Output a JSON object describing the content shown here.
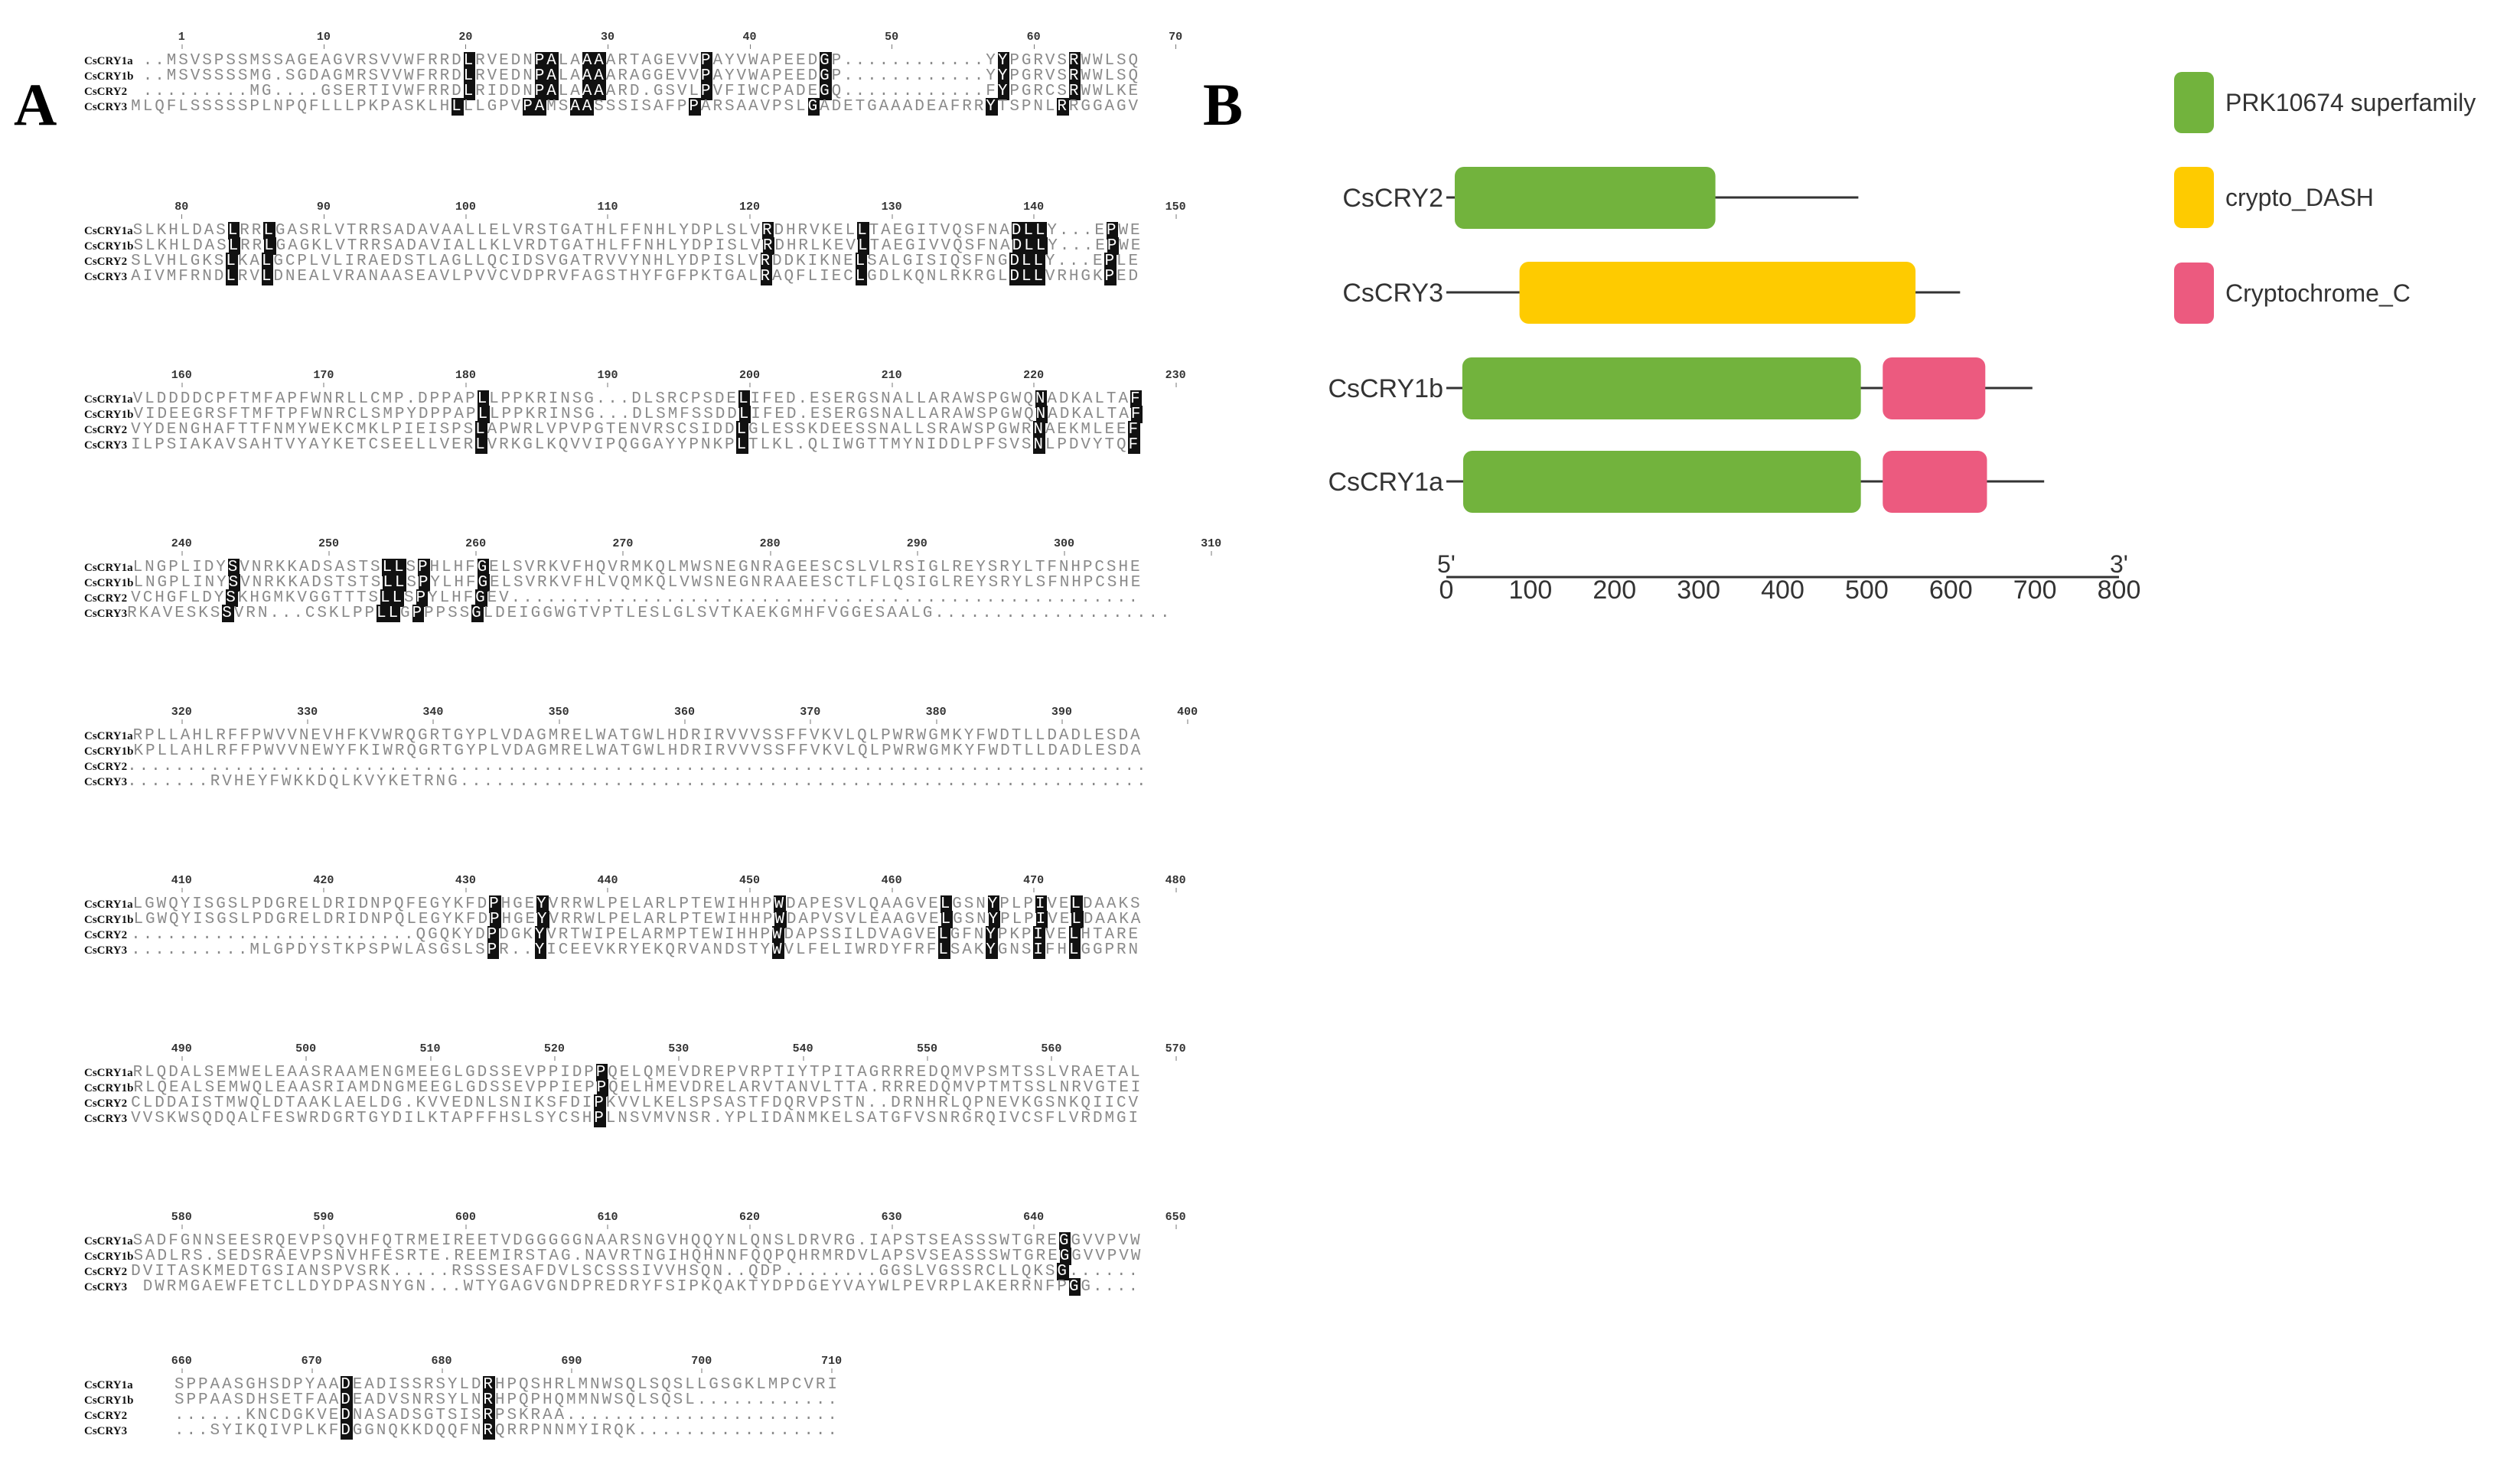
{
  "panel_a": {
    "label": "A",
    "blocks": [
      {
        "ruler": [
          "1",
          "10",
          "20",
          "30",
          "40",
          "50",
          "60",
          "70"
        ],
        "rows": [
          {
            "name": "CsCRY1a",
            "seq": "..MSVSPSSMSSAGEAGVRSVVWFRRDLRVEDNPALAAAARTAGEVVPAYVWAPEEDGP............YYPGRVSRWWLSQ"
          },
          {
            "name": "CsCRY1b",
            "seq": "..MSVSSSSMG.SGDAGMRSVVWFRRDLRVEDNPALAAAARAGGEVVPAYVWAPEEDGP............YYPGRVSRWWLSQ"
          },
          {
            "name": "CsCRY2",
            "seq": ".........MG....GSERTIVWFRRDLRIDDNPALAAAARD.GSVLPVFIWCPADEGQ............FYPGRCSRWWLKE"
          },
          {
            "name": "CsCRY3",
            "seq": "MLQFLSSSSSPLNPQFLLLPKPASKLHLLLGPVPAMSAASSSISAFPPARSAAVPSLGADETGAAADEAFRRYTSPNLRRGGAGV"
          }
        ]
      },
      {
        "ruler": [
          "80",
          "90",
          "100",
          "110",
          "120",
          "130",
          "140",
          "150"
        ],
        "rows": [
          {
            "name": "CsCRY1a",
            "seq": "SLKHLDASLRRLGASRLVTRRSADAVAALLELVRSTGATHLFFNHLYDPLSLVRDHRVKELLTAEGITVQSFNADLLY...EPWE"
          },
          {
            "name": "CsCRY1b",
            "seq": "SLKHLDASLRRLGAGKLVTRRSADAVIALLKLVRDTGATHLFFNHLYDPISLVRDHRLKEVLTAEGIVVQSFNADLLY...EPWE"
          },
          {
            "name": "CsCRY2",
            "seq": "SLVHLGKSLKALGCPLVLIRAEDSTLAGLLQCIDSVGATRVVYNHLYDPISLVRDDKIKNELSALGISIQSFNGDLLY...EPLE"
          },
          {
            "name": "CsCRY3",
            "seq": "AIVMFRNDLRVLDNEALVRANAASEAVLPVVCVDPRVFAGSTHYFGFPKTGALRAQFLIECLGDLKQNLRKRGLDLLVRHGKPED"
          }
        ]
      },
      {
        "ruler": [
          "160",
          "170",
          "180",
          "190",
          "200",
          "210",
          "220",
          "230"
        ],
        "rows": [
          {
            "name": "CsCRY1a",
            "seq": "VLDDDDCPFTMFAPFWNRLLCMP.DPPAPLLPPKRINSG...DLSRCPSDELIFED.ESERGSNALLARAWSPGWQNADKALTAF"
          },
          {
            "name": "CsCRY1b",
            "seq": "VIDEEGRSFTMFTPFWNRCLSMPYDPPAPLLPPKRINSG...DLSMFSSDDLIFED.ESERGSNALLARAWSPGWQNADKALTAF"
          },
          {
            "name": "CsCRY2",
            "seq": "VYDENGHAFTTFNMYWEKCMKLPIEISPSLAPWRLVPVPGTENVRSCSIDDLGLESSKDEESSNALLSRAWSPGWRNAEKMLEEF"
          },
          {
            "name": "CsCRY3",
            "seq": "ILPSIAKAVSAHTVYAYKETCSEELLVERLVRKGLKQVVIPQGGAYYPNKPLTLKL.QLIWGTTMYNIDDLPFSVSNLPDVYTQF"
          }
        ]
      },
      {
        "ruler": [
          "240",
          "250",
          "260",
          "270",
          "280",
          "290",
          "300",
          "310"
        ],
        "rows": [
          {
            "name": "CsCRY1a",
            "seq": "LNGPLIDYSVNRKKADSASTSLLSPHLHFGELSVRKVFHQVRMKQLMWSNEGNRAGEESCSLVLRSIGLREYSRYLTFNHPCSHE"
          },
          {
            "name": "CsCRY1b",
            "seq": "LNGPLINYSVNRKKADSTSTSLLSPYLHFGELSVRKVFHLVQMKQLVWSNEGNRAAEESCTLFLQSIGLREYSRYLSFNHPCSHE"
          },
          {
            "name": "CsCRY2",
            "seq": "VCHGFLDYSKHGMKVGGTTTSLLSPYLHFGEV....................................................."
          },
          {
            "name": "CsCRY3",
            "seq": "RKAVESKSSVRN...CSKLPPLLGPPPSSGLDEIGGWGTVPTLESLGLSVTKAEKGMHFVGGESAALG...................."
          }
        ]
      },
      {
        "ruler": [
          "320",
          "330",
          "340",
          "350",
          "360",
          "370",
          "380",
          "390",
          "400"
        ],
        "rows": [
          {
            "name": "CsCRY1a",
            "seq": "RPLLAHLRFFPWVVNEVHFKVWRQGRTGYPLVDAGMRELWATGWLHDRIRVVVSSFFVKVLQLPWRWGMKYFWDTLLDADLESDA"
          },
          {
            "name": "CsCRY1b",
            "seq": "KPLLAHLRFFPWVVNEWYFKIWRQGRTGYPLVDAGMRELWATGWLHDRIRVVVSSFFVKVLQLPWRWGMKYFWDTLLDADLESDA"
          },
          {
            "name": "CsCRY2",
            "seq": "......................................................................................"
          },
          {
            "name": "CsCRY3",
            "seq": ".......RVHEYFWKKDQLKVYKETRNG.........................................................."
          }
        ]
      },
      {
        "ruler": [
          "410",
          "420",
          "430",
          "440",
          "450",
          "460",
          "470",
          "480"
        ],
        "rows": [
          {
            "name": "CsCRY1a",
            "seq": "LGWQYISGSLPDGRELDRIDNPQFEGYKFDPHGEYVRRWLPELARLPTEWIHHPWDAPESVLQAAGVELGSNYPLPIVELDAAKS"
          },
          {
            "name": "CsCRY1b",
            "seq": "LGWQYISGSLPDGRELDRIDNPQLEGYKFDPHGEYVRRWLPELARLPTEWIHHPWDAPVSVLEAAGVELGSNYPLPIVELDAAKA"
          },
          {
            "name": "CsCRY2",
            "seq": "........................QGQKYDPDGKYVRTWIPELARMPTEWIHHPWDAPSSILDVAGVELGFNYPKPIVELHTARE"
          },
          {
            "name": "CsCRY3",
            "seq": "..........MLGPDYSTKPSPWLASGSLSPR..YICEEVKRYEKQRVANDSTYWVLFELIWRDYFRFLSAKYGNSIFHLGGPRN"
          }
        ]
      },
      {
        "ruler": [
          "490",
          "500",
          "510",
          "520",
          "530",
          "540",
          "550",
          "560",
          "570"
        ],
        "rows": [
          {
            "name": "CsCRY1a",
            "seq": "RLQDALSEMWELEAASRAAMENGMEEGLGDSSEVPPIDPPQELQMEVDREPVRPTIYTPITAGRRREDQMVPSMTSSLVRAETAL"
          },
          {
            "name": "CsCRY1b",
            "seq": "RLQEALSEMWQLEAASRIAMDNGMEEGLGDSSEVPPIEPPQELHMEVDRELARVTANVLTTA.RRREDQMVPTMTSSLNRVGTEI"
          },
          {
            "name": "CsCRY2",
            "seq": "CLDDAISTMWQLDTAAKLAELDG.KVVEDNLSNIKSFDIPKVVLKELSPSASTFDQRVPSTN..DRNHRLQPNEVKGSNKQIICV"
          },
          {
            "name": "CsCRY3",
            "seq": "VVSKWSQDQALFESWRDGRTGYDILKTAPFFHSLSYCSHPLNSVMVNSR.YPLIDANMKELSATGFVSNRGRQIVCSFLVRDMGI"
          }
        ]
      },
      {
        "ruler": [
          "580",
          "590",
          "600",
          "610",
          "620",
          "630",
          "640",
          "650"
        ],
        "rows": [
          {
            "name": "CsCRY1a",
            "seq": "SADFGNNSEESRQEVPSQVHFQTRMEIREETVDGGGGGNAARSNGVHQQYNLQNSLDRVRG.IAPSTSEASSSWTGREGGVVPVW"
          },
          {
            "name": "CsCRY1b",
            "seq": "SADLRS.SEDSRAEVPSNVHFESRTE.REEMIRSTAG.NAVRTNGIHQHNNFQQPQHRMRDVLAPSVSEASSSWTGREGGVVPVW"
          },
          {
            "name": "CsCRY2",
            "seq": "DVITASKMEDTGSIANSPVSRK.....RSSSESAFDVLSCSSSIVVHSQN..QDP........GGSLVGSSRCLLQKSG......"
          },
          {
            "name": "CsCRY3",
            "seq": "DWRMGAEWFETCLLDYDPASNYGN...WTYGAGVGNDPREDRYFSIPKQAKTYDPDGEYVAYWLPEVRPLAKERRNFPGG...."
          }
        ]
      },
      {
        "ruler": [
          "660",
          "670",
          "680",
          "690",
          "700",
          "710"
        ],
        "rows": [
          {
            "name": "CsCRY1a",
            "seq": "SPPAASGHSDPYAADEADISSRSYLDRHPQSHRLMNWSQLSQSLLGSGKLMPCVRI"
          },
          {
            "name": "CsCRY1b",
            "seq": "SPPAASDHSETFAADEADVSNRSYLNRHPQPHQMMNWSQLSQSL............"
          },
          {
            "name": "CsCRY2",
            "seq": "......KNCDGKVEDNASADSGTSISRPSKRAA......................."
          },
          {
            "name": "CsCRY3",
            "seq": "...SYIKQIVPLKFDGGNQKKDQQFNRQRRPNNMYIRQK................."
          }
        ]
      }
    ]
  },
  "panel_b": {
    "label": "B",
    "axis": {
      "min": 0,
      "max": 800,
      "ticks": [
        "0",
        "100",
        "200",
        "300",
        "400",
        "500",
        "600",
        "700",
        "800"
      ],
      "start_label": "5'",
      "end_label": "3'"
    },
    "legend": [
      {
        "name": "PRK10674 superfamily",
        "color": "#72b33d"
      },
      {
        "name": "crypto_DASH",
        "color": "#fecb00"
      },
      {
        "name": "Cryptochrome_C",
        "color": "#ec5a7f"
      }
    ],
    "proteins": [
      {
        "name": "CsCRY2",
        "length": 490,
        "domains": [
          {
            "type": 0,
            "start": 10,
            "end": 320
          }
        ]
      },
      {
        "name": "CsCRY3",
        "length": 611,
        "domains": [
          {
            "type": 1,
            "start": 87,
            "end": 558
          }
        ]
      },
      {
        "name": "CsCRY1b",
        "length": 697,
        "domains": [
          {
            "type": 0,
            "start": 19,
            "end": 493
          },
          {
            "type": 2,
            "start": 519,
            "end": 641
          }
        ]
      },
      {
        "name": "CsCRY1a",
        "length": 711,
        "domains": [
          {
            "type": 0,
            "start": 20,
            "end": 493
          },
          {
            "type": 2,
            "start": 519,
            "end": 643
          }
        ]
      }
    ]
  }
}
